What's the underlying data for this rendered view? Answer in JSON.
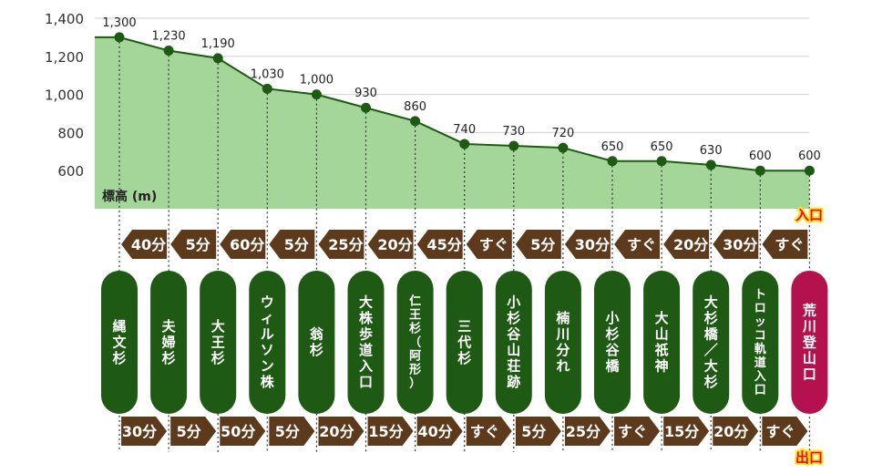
{
  "chart_data": {
    "type": "area",
    "ylabel": "標高 (m)",
    "ylim": [
      400,
      1400
    ],
    "yticks": [
      600,
      800,
      1000,
      1200,
      1400
    ],
    "ytick_labels": [
      "600",
      "800",
      "1,000",
      "1,200",
      "1,400"
    ],
    "grid": true,
    "stations": [
      "縄文杉",
      "夫婦杉",
      "大王杉",
      "ウィルソン株",
      "翁杉",
      "大株歩道入口",
      "仁王杉（阿形）",
      "三代杉",
      "小杉谷山荘跡",
      "楠川分れ",
      "小杉谷橋",
      "大山祇神",
      "大杉橋／大杉",
      "トロッコ軌道入口",
      "荒川登山口"
    ],
    "values": [
      1300,
      1230,
      1190,
      1030,
      1000,
      930,
      860,
      740,
      730,
      720,
      650,
      650,
      630,
      600,
      600
    ],
    "value_labels": [
      "1,300",
      "1,230",
      "1,190",
      "1,030",
      "1,000",
      "930",
      "860",
      "740",
      "730",
      "720",
      "650",
      "650",
      "630",
      "600",
      "600"
    ],
    "line_start_value": 1300,
    "times_in": [
      "40分",
      "5分",
      "60分",
      "5分",
      "25分",
      "20分",
      "45分",
      "すぐ",
      "5分",
      "30分",
      "すぐ",
      "20分",
      "30分",
      "すぐ"
    ],
    "times_out": [
      "30分",
      "5分",
      "50分",
      "5分",
      "20分",
      "15分",
      "40分",
      "すぐ",
      "5分",
      "25分",
      "すぐ",
      "15分",
      "20分",
      "すぐ"
    ],
    "entrance_label": "入口",
    "exit_label": "出口"
  },
  "colors": {
    "area_fill": "#a5d699",
    "line": "#1e5a14",
    "dot": "#1e5a14",
    "pill": "#1e5a14",
    "pill_last": "#b3124e",
    "arrow": "#5c3a1b",
    "arrow_text": "#ffffff",
    "grid": "#d0d0d0",
    "label_text": "#222222",
    "entrance_text": "#e8005a",
    "entrance_glow": "#ffe600"
  }
}
